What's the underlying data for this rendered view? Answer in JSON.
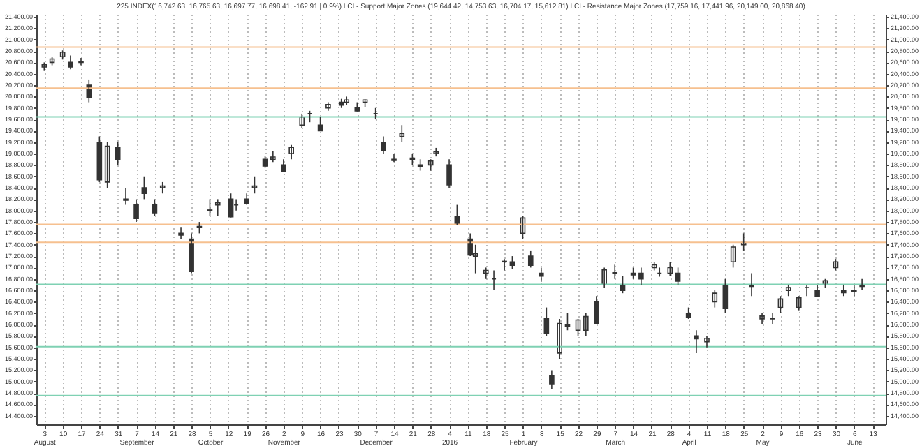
{
  "chart_data": {
    "type": "candlestick",
    "title": "225 INDEX(16,742.63, 16,765.63, 16,697.77, 16,698.41, -162.91 | 0.9%) LCI - Support Major Zones (19,644.42, 14,753.63, 16,704.17, 15,612.81) LCI - Resistance Major Zones (17,759.16, 17,441.96, 20,149.00, 20,868.40)",
    "x": [
      "2015-08-03",
      "2015-08-06",
      "2015-08-10",
      "2015-08-13",
      "2015-08-17",
      "2015-08-20",
      "2015-08-24",
      "2015-08-27",
      "2015-08-31",
      "2015-09-03",
      "2015-09-07",
      "2015-09-10",
      "2015-09-14",
      "2015-09-17",
      "2015-09-24",
      "2015-09-28",
      "2015-10-01",
      "2015-10-05",
      "2015-10-08",
      "2015-10-13",
      "2015-10-15",
      "2015-10-19",
      "2015-10-22",
      "2015-10-26",
      "2015-10-29",
      "2015-11-02",
      "2015-11-05",
      "2015-11-09",
      "2015-11-12",
      "2015-11-16",
      "2015-11-19",
      "2015-11-24",
      "2015-11-26",
      "2015-11-30",
      "2015-12-03",
      "2015-12-07",
      "2015-12-10",
      "2015-12-14",
      "2015-12-17",
      "2015-12-21",
      "2015-12-24",
      "2015-12-28",
      "2015-12-30",
      "2016-01-04",
      "2016-01-07",
      "2016-01-12",
      "2016-01-14",
      "2016-01-18",
      "2016-01-21",
      "2016-01-25",
      "2016-01-28",
      "2016-02-01",
      "2016-02-04",
      "2016-02-08",
      "2016-02-10",
      "2016-02-12",
      "2016-02-15",
      "2016-02-18",
      "2016-02-22",
      "2016-02-25",
      "2016-02-29",
      "2016-03-03",
      "2016-03-07",
      "2016-03-10",
      "2016-03-14",
      "2016-03-17",
      "2016-03-22",
      "2016-03-24",
      "2016-03-28",
      "2016-03-31",
      "2016-04-04",
      "2016-04-07",
      "2016-04-11",
      "2016-04-14",
      "2016-04-18",
      "2016-04-21",
      "2016-04-25",
      "2016-04-28",
      "2016-05-02",
      "2016-05-06",
      "2016-05-09",
      "2016-05-12",
      "2016-05-16",
      "2016-05-19",
      "2016-05-23",
      "2016-05-26",
      "2016-05-30",
      "2016-06-02",
      "2016-06-06",
      "2016-06-09"
    ],
    "ohlc": [
      [
        20520,
        20600,
        20450,
        20560
      ],
      [
        20600,
        20700,
        20550,
        20660
      ],
      [
        20700,
        20810,
        20650,
        20780
      ],
      [
        20600,
        20720,
        20480,
        20520
      ],
      [
        20600,
        20680,
        20550,
        20620
      ],
      [
        20200,
        20300,
        19900,
        19980
      ],
      [
        19200,
        19300,
        18500,
        18540
      ],
      [
        18500,
        19200,
        18400,
        19130
      ],
      [
        19100,
        19200,
        18800,
        18890
      ],
      [
        18200,
        18400,
        18100,
        18180
      ],
      [
        18100,
        18200,
        17800,
        17860
      ],
      [
        18400,
        18600,
        18200,
        18300
      ],
      [
        18100,
        18200,
        17900,
        17960
      ],
      [
        18400,
        18500,
        18300,
        18430
      ],
      [
        17600,
        17700,
        17500,
        17570
      ],
      [
        17500,
        17600,
        16900,
        16930
      ],
      [
        17700,
        17800,
        17600,
        17720
      ],
      [
        18000,
        18200,
        17900,
        18010
      ],
      [
        18100,
        18200,
        17900,
        18140
      ],
      [
        18200,
        18300,
        17880,
        17890
      ],
      [
        18100,
        18200,
        18000,
        18100
      ],
      [
        18200,
        18300,
        18100,
        18130
      ],
      [
        18400,
        18600,
        18300,
        18430
      ],
      [
        18900,
        18950,
        18750,
        18780
      ],
      [
        18900,
        19050,
        18850,
        18940
      ],
      [
        18800,
        18900,
        18680,
        18690
      ],
      [
        19000,
        19150,
        18900,
        19110
      ],
      [
        19500,
        19700,
        19450,
        19640
      ],
      [
        19700,
        19750,
        19550,
        19700
      ],
      [
        19500,
        19650,
        19400,
        19400
      ],
      [
        19800,
        19900,
        19750,
        19860
      ],
      [
        19900,
        19960,
        19800,
        19850
      ],
      [
        19900,
        20000,
        19850,
        19940
      ],
      [
        19800,
        19900,
        19740,
        19750
      ],
      [
        19900,
        19950,
        19820,
        19940
      ],
      [
        19700,
        19800,
        19600,
        19700
      ],
      [
        19200,
        19300,
        19000,
        19050
      ],
      [
        18900,
        19000,
        18850,
        18880
      ],
      [
        19300,
        19500,
        19200,
        19350
      ],
      [
        18900,
        19000,
        18800,
        18920
      ],
      [
        18800,
        18900,
        18700,
        18770
      ],
      [
        18800,
        18900,
        18700,
        18870
      ],
      [
        19000,
        19100,
        18950,
        19030
      ],
      [
        18800,
        18900,
        18400,
        18450
      ],
      [
        17900,
        18100,
        17750,
        17770
      ],
      [
        17500,
        17600,
        17200,
        17220
      ],
      [
        17200,
        17400,
        16900,
        17240
      ],
      [
        16900,
        17000,
        16800,
        16950
      ],
      [
        16800,
        16950,
        16600,
        16800
      ],
      [
        17100,
        17150,
        16950,
        17110
      ],
      [
        17100,
        17200,
        16980,
        17040
      ],
      [
        17600,
        17900,
        17500,
        17870
      ],
      [
        17200,
        17300,
        17000,
        17040
      ],
      [
        16900,
        17000,
        16750,
        16850
      ],
      [
        16100,
        16300,
        15800,
        15850
      ],
      [
        15100,
        15200,
        14865,
        14950
      ],
      [
        15500,
        16100,
        15400,
        16020
      ],
      [
        16000,
        16200,
        15900,
        15970
      ],
      [
        15900,
        16100,
        15800,
        16080
      ],
      [
        15900,
        16200,
        15800,
        16140
      ],
      [
        16400,
        16500,
        16000,
        16020
      ],
      [
        16700,
        17000,
        16650,
        16960
      ],
      [
        16900,
        17050,
        16800,
        16910
      ],
      [
        16700,
        16850,
        16550,
        16600
      ],
      [
        16900,
        17000,
        16800,
        16870
      ],
      [
        16900,
        17000,
        16700,
        16800
      ],
      [
        17000,
        17100,
        16950,
        17050
      ],
      [
        16900,
        17000,
        16840,
        16900
      ],
      [
        16900,
        17100,
        16850,
        17000
      ],
      [
        16900,
        17000,
        16700,
        16760
      ],
      [
        16200,
        16300,
        16100,
        16120
      ],
      [
        15800,
        15900,
        15500,
        15750
      ],
      [
        15700,
        15800,
        15600,
        15760
      ],
      [
        16400,
        16600,
        16300,
        16550
      ],
      [
        16700,
        16800,
        16200,
        16280
      ],
      [
        17100,
        17400,
        17000,
        17360
      ],
      [
        17400,
        17600,
        17300,
        17440
      ],
      [
        16700,
        16900,
        16500,
        16670
      ],
      [
        16100,
        16200,
        16000,
        16150
      ],
      [
        16100,
        16200,
        16000,
        16110
      ],
      [
        16300,
        16500,
        16200,
        16450
      ],
      [
        16600,
        16700,
        16500,
        16650
      ],
      [
        16300,
        16500,
        16250,
        16470
      ],
      [
        16650,
        16700,
        16500,
        16650
      ],
      [
        16600,
        16700,
        16500,
        16500
      ],
      [
        16700,
        16800,
        16650,
        16770
      ],
      [
        17000,
        17150,
        16950,
        17100
      ],
      [
        16600,
        16700,
        16500,
        16560
      ],
      [
        16600,
        16700,
        16500,
        16580
      ],
      [
        16700,
        16800,
        16600,
        16670
      ]
    ],
    "color": "#333333",
    "xlim": [
      "2015-07-31",
      "2016-06-18"
    ],
    "xticks": [
      {
        "value": "2015-08-03",
        "label": "3\nAugust"
      },
      {
        "value": "2015-08-10",
        "label": "10"
      },
      {
        "value": "2015-08-17",
        "label": "17"
      },
      {
        "value": "2015-08-24",
        "label": "24"
      },
      {
        "value": "2015-08-31",
        "label": "31"
      },
      {
        "value": "2015-09-07",
        "label": "7\nSeptember"
      },
      {
        "value": "2015-09-14",
        "label": "14"
      },
      {
        "value": "2015-09-21",
        "label": "21"
      },
      {
        "value": "2015-09-28",
        "label": "28"
      },
      {
        "value": "2015-10-05",
        "label": "5\nOctober"
      },
      {
        "value": "2015-10-12",
        "label": "12"
      },
      {
        "value": "2015-10-19",
        "label": "19"
      },
      {
        "value": "2015-10-26",
        "label": "26"
      },
      {
        "value": "2015-11-02",
        "label": "2\nNovember"
      },
      {
        "value": "2015-11-09",
        "label": "9"
      },
      {
        "value": "2015-11-16",
        "label": "16"
      },
      {
        "value": "2015-11-23",
        "label": "23"
      },
      {
        "value": "2015-11-30",
        "label": "30"
      },
      {
        "value": "2015-12-07",
        "label": "7\nDecember"
      },
      {
        "value": "2015-12-14",
        "label": "14"
      },
      {
        "value": "2015-12-21",
        "label": "21"
      },
      {
        "value": "2015-12-28",
        "label": "28"
      },
      {
        "value": "2016-01-04",
        "label": "4\n2016"
      },
      {
        "value": "2016-01-11",
        "label": "11"
      },
      {
        "value": "2016-01-18",
        "label": "18"
      },
      {
        "value": "2016-01-25",
        "label": "25"
      },
      {
        "value": "2016-02-01",
        "label": "1\nFebruary"
      },
      {
        "value": "2016-02-08",
        "label": "8"
      },
      {
        "value": "2016-02-15",
        "label": "15"
      },
      {
        "value": "2016-02-22",
        "label": "22"
      },
      {
        "value": "2016-02-29",
        "label": "29"
      },
      {
        "value": "2016-03-07",
        "label": "7\nMarch"
      },
      {
        "value": "2016-03-14",
        "label": "14"
      },
      {
        "value": "2016-03-21",
        "label": "21"
      },
      {
        "value": "2016-03-28",
        "label": "28"
      },
      {
        "value": "2016-04-04",
        "label": "4\nApril"
      },
      {
        "value": "2016-04-11",
        "label": "11"
      },
      {
        "value": "2016-04-18",
        "label": "18"
      },
      {
        "value": "2016-04-25",
        "label": "25"
      },
      {
        "value": "2016-05-02",
        "label": "2\nMay"
      },
      {
        "value": "2016-05-09",
        "label": "9"
      },
      {
        "value": "2016-05-16",
        "label": "16"
      },
      {
        "value": "2016-05-23",
        "label": "23"
      },
      {
        "value": "2016-05-30",
        "label": "30"
      },
      {
        "value": "2016-06-06",
        "label": "6\nJune"
      },
      {
        "value": "2016-06-13",
        "label": "13"
      }
    ],
    "ylim": [
      14250,
      21450
    ],
    "yticks": [
      {
        "value": 14400,
        "label": "14,400.00"
      },
      {
        "value": 14600,
        "label": "14,600.00"
      },
      {
        "value": 14800,
        "label": "14,800.00"
      },
      {
        "value": 15000,
        "label": "15,000.00"
      },
      {
        "value": 15200,
        "label": "15,200.00"
      },
      {
        "value": 15400,
        "label": "15,400.00"
      },
      {
        "value": 15600,
        "label": "15,600.00"
      },
      {
        "value": 15800,
        "label": "15,800.00"
      },
      {
        "value": 16000,
        "label": "16,000.00"
      },
      {
        "value": 16200,
        "label": "16,200.00"
      },
      {
        "value": 16400,
        "label": "16,400.00"
      },
      {
        "value": 16600,
        "label": "16,600.00"
      },
      {
        "value": 16800,
        "label": "16,800.00"
      },
      {
        "value": 17000,
        "label": "17,000.00"
      },
      {
        "value": 17200,
        "label": "17,200.00"
      },
      {
        "value": 17400,
        "label": "17,400.00"
      },
      {
        "value": 17600,
        "label": "17,600.00"
      },
      {
        "value": 17800,
        "label": "17,800.00"
      },
      {
        "value": 18000,
        "label": "18,000.00"
      },
      {
        "value": 18200,
        "label": "18,200.00"
      },
      {
        "value": 18400,
        "label": "18,400.00"
      },
      {
        "value": 18600,
        "label": "18,600.00"
      },
      {
        "value": 18800,
        "label": "18,800.00"
      },
      {
        "value": 19000,
        "label": "19,000.00"
      },
      {
        "value": 19200,
        "label": "19,200.00"
      },
      {
        "value": 19400,
        "label": "19,400.00"
      },
      {
        "value": 19600,
        "label": "19,600.00"
      },
      {
        "value": 19800,
        "label": "19,800.00"
      },
      {
        "value": 20000,
        "label": "20,000.00"
      },
      {
        "value": 20200,
        "label": "20,200.00"
      },
      {
        "value": 20400,
        "label": "20,400.00"
      },
      {
        "value": 20600,
        "label": "20,600.00"
      },
      {
        "value": 20800,
        "label": "20,800.00"
      },
      {
        "value": 21000,
        "label": "21,000.00"
      },
      {
        "value": 21200,
        "label": "21,200.00"
      },
      {
        "value": 21400,
        "label": "21,400.00"
      }
    ],
    "y2lim": [
      14250,
      21450
    ],
    "y2ticks": [
      {
        "value": 14400,
        "label": "14,400.00"
      },
      {
        "value": 14600,
        "label": "14,600.00"
      },
      {
        "value": 14800,
        "label": "14,800.00"
      },
      {
        "value": 15000,
        "label": "15,000.00"
      },
      {
        "value": 15200,
        "label": "15,200.00"
      },
      {
        "value": 15400,
        "label": "15,400.00"
      },
      {
        "value": 15600,
        "label": "15,600.00"
      },
      {
        "value": 15800,
        "label": "15,800.00"
      },
      {
        "value": 16000,
        "label": "16,000.00"
      },
      {
        "value": 16200,
        "label": "16,200.00"
      },
      {
        "value": 16400,
        "label": "16,400.00"
      },
      {
        "value": 16600,
        "label": "16,600.00"
      },
      {
        "value": 16800,
        "label": "16,800.00"
      },
      {
        "value": 17000,
        "label": "17,000.00"
      },
      {
        "value": 17200,
        "label": "17,200.00"
      },
      {
        "value": 17400,
        "label": "17,400.00"
      },
      {
        "value": 17600,
        "label": "17,600.00"
      },
      {
        "value": 17800,
        "label": "17,800.00"
      },
      {
        "value": 18000,
        "label": "18,000.00"
      },
      {
        "value": 18200,
        "label": "18,200.00"
      },
      {
        "value": 18400,
        "label": "18,400.00"
      },
      {
        "value": 18600,
        "label": "18,600.00"
      },
      {
        "value": 18800,
        "label": "18,800.00"
      },
      {
        "value": 19000,
        "label": "19,000.00"
      },
      {
        "value": 19200,
        "label": "19,200.00"
      },
      {
        "value": 19400,
        "label": "19,400.00"
      },
      {
        "value": 19600,
        "label": "19,600.00"
      },
      {
        "value": 19800,
        "label": "19,800.00"
      },
      {
        "value": 20000,
        "label": "20,000.00"
      },
      {
        "value": 20200,
        "label": "20,200.00"
      },
      {
        "value": 20400,
        "label": "20,400.00"
      },
      {
        "value": 20600,
        "label": "20,600.00"
      },
      {
        "value": 20800,
        "label": "20,800.00"
      },
      {
        "value": 21000,
        "label": "21,000.00"
      },
      {
        "value": 21200,
        "label": "21,200.00"
      },
      {
        "value": 21400,
        "label": "21,400.00"
      }
    ],
    "grid": "x",
    "ref_lines": [
      {
        "axis": "y",
        "value": 20868.4,
        "color": "#f6c08f"
      },
      {
        "axis": "y",
        "value": 20149,
        "color": "#f6c08f"
      },
      {
        "axis": "y",
        "value": 17759.16,
        "color": "#f6c08f"
      },
      {
        "axis": "y",
        "value": 17441.96,
        "color": "#f6c08f"
      },
      {
        "axis": "y",
        "value": 19644.42,
        "color": "#7fd1b3"
      },
      {
        "axis": "y",
        "value": 16704.17,
        "color": "#7fd1b3"
      },
      {
        "axis": "y",
        "value": 15612.81,
        "color": "#7fd1b3"
      },
      {
        "axis": "y",
        "value": 14753.63,
        "color": "#7fd1b3"
      }
    ]
  }
}
